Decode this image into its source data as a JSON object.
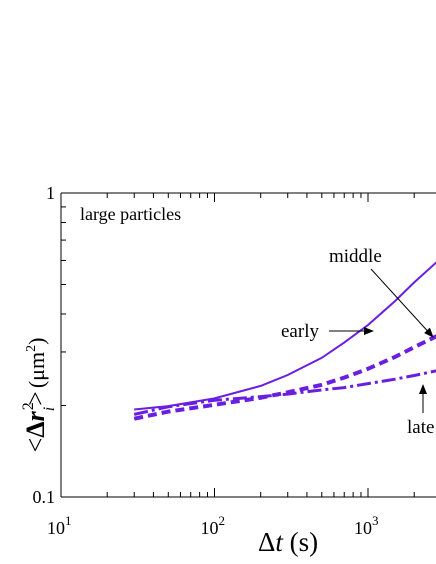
{
  "colors": {
    "series": "#6a1fe0",
    "axis": "#000000"
  },
  "chart_data": {
    "type": "line",
    "title": "",
    "panel_label": "large particles",
    "xlabel_parts": {
      "delta": "Δ",
      "var": "t",
      "unit": " (s)"
    },
    "ylabel_parts": {
      "lt": "<",
      "delta": "Δ",
      "var": "r",
      "sup": "2",
      "sub": "i",
      "gt": ">",
      "unit_open": "(",
      "unit": "μm",
      "unit_sup": "2",
      "unit_close": ")"
    },
    "xscale": "log",
    "yscale": "log",
    "xlim": [
      10,
      3000
    ],
    "ylim": [
      0.1,
      1
    ],
    "x_ticks": [
      {
        "base": "10",
        "exp": "1"
      },
      {
        "base": "10",
        "exp": "2"
      },
      {
        "base": "10",
        "exp": "3"
      }
    ],
    "y_ticks": [
      "0.1",
      "1"
    ],
    "series": [
      {
        "name": "early",
        "style": "solid",
        "x": [
          30,
          50,
          100,
          200,
          300,
          500,
          700,
          1000,
          1500,
          2000,
          3000
        ],
        "y": [
          0.194,
          0.199,
          0.211,
          0.232,
          0.252,
          0.287,
          0.322,
          0.368,
          0.441,
          0.508,
          0.611
        ]
      },
      {
        "name": "middle",
        "style": "dashed",
        "x": [
          30,
          50,
          100,
          200,
          300,
          500,
          700,
          1000,
          1500,
          2000,
          3000
        ],
        "y": [
          0.181,
          0.191,
          0.201,
          0.212,
          0.221,
          0.234,
          0.247,
          0.264,
          0.289,
          0.311,
          0.344
        ]
      },
      {
        "name": "late",
        "style": "dashdot",
        "x": [
          30,
          50,
          100,
          200,
          300,
          500,
          700,
          1000,
          1500,
          2000,
          3000
        ],
        "y": [
          0.187,
          0.198,
          0.208,
          0.214,
          0.218,
          0.225,
          0.229,
          0.236,
          0.244,
          0.251,
          0.262
        ]
      }
    ],
    "annotations": [
      {
        "text": "middle",
        "series": "middle"
      },
      {
        "text": "early",
        "series": "early"
      },
      {
        "text": "late",
        "series": "late"
      }
    ]
  }
}
